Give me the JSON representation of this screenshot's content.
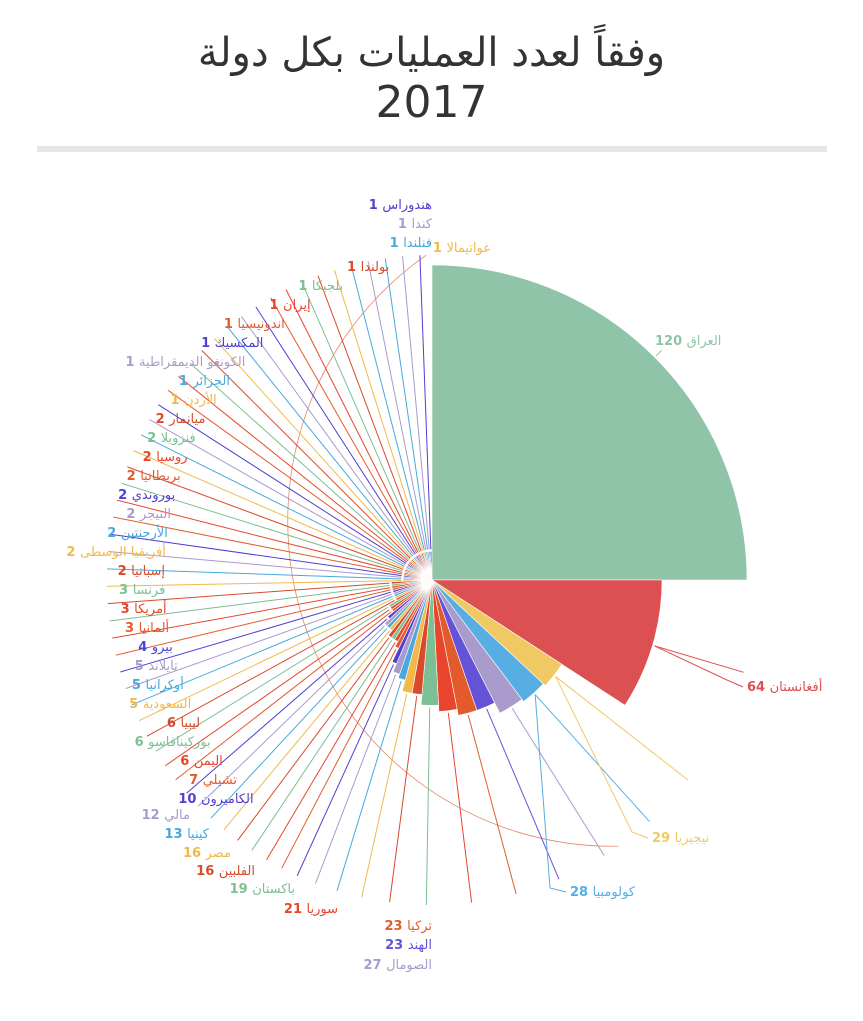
{
  "title": "وفقاً لعدد العمليات بكل دولة",
  "subtitle": "2017",
  "chart_data": {
    "type": "pie",
    "variant": "polar-area",
    "title": "وفقاً لعدد العمليات بكل دولة",
    "subtitle": "2017",
    "slices": [
      {
        "label": "العراق",
        "value": 120,
        "color": "#8fc4a8"
      },
      {
        "label": "أفغانستان",
        "value": 64,
        "color": "#dc5052"
      },
      {
        "label": "نيجيريا",
        "value": 29,
        "color": "#f0c963"
      },
      {
        "label": "كولومبيا",
        "value": 28,
        "color": "#56aee2"
      },
      {
        "label": "الصومال",
        "value": 27,
        "color": "#a99bcc"
      },
      {
        "label": "الهند",
        "value": 23,
        "color": "#6453d6"
      },
      {
        "label": "تركيا",
        "value": 23,
        "color": "#e35b2d"
      },
      {
        "label": "سوريا",
        "value": 21,
        "color": "#e8452c"
      },
      {
        "label": "باكستان",
        "value": 19,
        "color": "#7cbf92"
      },
      {
        "label": "الفلبين",
        "value": 16,
        "color": "#d94a2a"
      },
      {
        "label": "مصر",
        "value": 16,
        "color": "#f0b94a"
      },
      {
        "label": "كينيا",
        "value": 13,
        "color": "#4aa8dc"
      },
      {
        "label": "مالي",
        "value": 12,
        "color": "#a99bcc"
      },
      {
        "label": "الكاميرون",
        "value": 10,
        "color": "#5040d0"
      },
      {
        "label": "تشيلي",
        "value": 7,
        "color": "#e35b2d"
      },
      {
        "label": "اليمن",
        "value": 6,
        "color": "#e8452c"
      },
      {
        "label": "بوركينافاسو",
        "value": 6,
        "color": "#7cbf92"
      },
      {
        "label": "ليبيا",
        "value": 6,
        "color": "#d94a2a"
      },
      {
        "label": "السعودية",
        "value": 5,
        "color": "#f0b94a"
      },
      {
        "label": "أوكرانيا",
        "value": 5,
        "color": "#4aa8dc"
      },
      {
        "label": "تايلاند",
        "value": 5,
        "color": "#a99bcc"
      },
      {
        "label": "بيرو",
        "value": 4,
        "color": "#5040d0"
      },
      {
        "label": "ألمانيا",
        "value": 3,
        "color": "#e35b2d"
      },
      {
        "label": "أمريكا",
        "value": 3,
        "color": "#e8452c"
      },
      {
        "label": "فرنسا",
        "value": 3,
        "color": "#7cbf92"
      },
      {
        "label": "إسبانيا",
        "value": 2,
        "color": "#d94a2a"
      },
      {
        "label": "أفريقيا الوسطى",
        "value": 2,
        "color": "#f0b94a"
      },
      {
        "label": "الأرجنتين",
        "value": 2,
        "color": "#4aa8dc"
      },
      {
        "label": "النيجر",
        "value": 2,
        "color": "#a99bcc"
      },
      {
        "label": "بوروندي",
        "value": 2,
        "color": "#5040d0"
      },
      {
        "label": "بريطانيا",
        "value": 2,
        "color": "#e35b2d"
      },
      {
        "label": "روسيا",
        "value": 2,
        "color": "#e8452c"
      },
      {
        "label": "فنزويلا",
        "value": 2,
        "color": "#7cbf92"
      },
      {
        "label": "ميانمار",
        "value": 2,
        "color": "#d94a2a"
      },
      {
        "label": "الأردن",
        "value": 1,
        "color": "#f0b94a"
      },
      {
        "label": "الجزائر",
        "value": 1,
        "color": "#4aa8dc"
      },
      {
        "label": "الكونغو الديمقراطية",
        "value": 1,
        "color": "#a99bcc"
      },
      {
        "label": "المكسيك",
        "value": 1,
        "color": "#5040d0"
      },
      {
        "label": "اندونيسيا",
        "value": 1,
        "color": "#e35b2d"
      },
      {
        "label": "إيران",
        "value": 1,
        "color": "#e8452c"
      },
      {
        "label": "بلجيكا",
        "value": 1,
        "color": "#7cbf92"
      },
      {
        "label": "بولندا",
        "value": 1,
        "color": "#d94a2a"
      },
      {
        "label": "غواتيمالا",
        "value": 1,
        "color": "#f0b94a"
      },
      {
        "label": "",
        "value": 1,
        "color": "#4aa8dc"
      },
      {
        "label": "",
        "value": 1,
        "color": "#a99bcc"
      },
      {
        "label": "",
        "value": 1,
        "color": "#5040d0"
      },
      {
        "label": "",
        "value": 1,
        "color": "#e35b2d"
      },
      {
        "label": "",
        "value": 1,
        "color": "#e8452c"
      },
      {
        "label": "",
        "value": 1,
        "color": "#7cbf92"
      },
      {
        "label": "",
        "value": 1,
        "color": "#d94a2a"
      },
      {
        "label": "",
        "value": 1,
        "color": "#f0b94a"
      },
      {
        "label": "",
        "value": 1,
        "color": "#4aa8dc"
      },
      {
        "label": "",
        "value": 1,
        "color": "#a99bcc"
      },
      {
        "label": "",
        "value": 1,
        "color": "#5040d0"
      },
      {
        "label": "",
        "value": 1,
        "color": "#e35b2d"
      },
      {
        "label": "",
        "value": 1,
        "color": "#e8452c"
      },
      {
        "label": "",
        "value": 1,
        "color": "#7cbf92"
      },
      {
        "label": "",
        "value": 1,
        "color": "#d94a2a"
      },
      {
        "label": "",
        "value": 1,
        "color": "#f0b94a"
      },
      {
        "label": "",
        "value": 1,
        "color": "#4aa8dc"
      },
      {
        "label": "",
        "value": 1,
        "color": "#a99bcc"
      },
      {
        "label": "فنلندا",
        "value": 1,
        "color": "#4aa8dc"
      },
      {
        "label": "كندا",
        "value": 1,
        "color": "#a99bcc"
      },
      {
        "label": "هندوراس",
        "value": 1,
        "color": "#5040d0"
      }
    ]
  }
}
